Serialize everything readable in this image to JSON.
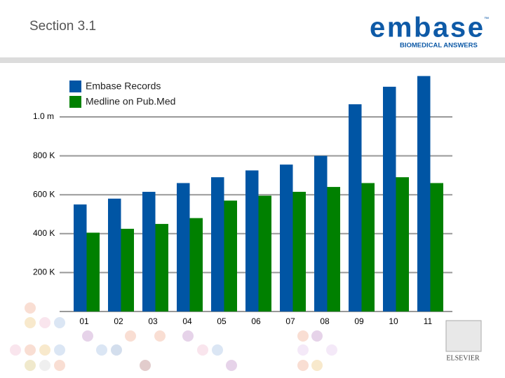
{
  "header": {
    "title": "Section 3.1",
    "logo": "embase",
    "logo_tm": "™",
    "logo_tagline": "BIOMEDICAL ANSWERS",
    "publisher": "ELSEVIER"
  },
  "chart_data": {
    "type": "bar",
    "categories": [
      "01",
      "02",
      "03",
      "04",
      "05",
      "06",
      "07",
      "08",
      "09",
      "10",
      "11"
    ],
    "series": [
      {
        "name": "Embase Records",
        "color": "#0055a4",
        "values": [
          550000,
          580000,
          615000,
          660000,
          690000,
          725000,
          755000,
          800000,
          1065000,
          1155000,
          1210000
        ]
      },
      {
        "name": "Medline on Pub.Med",
        "color": "#008000",
        "values": [
          405000,
          425000,
          450000,
          480000,
          570000,
          595000,
          615000,
          640000,
          660000,
          690000,
          660000
        ]
      }
    ],
    "ylim": [
      0,
      1250000
    ],
    "yticks": [
      {
        "value": 200000,
        "label": "200 K"
      },
      {
        "value": 400000,
        "label": "400 K"
      },
      {
        "value": 600000,
        "label": "600 K"
      },
      {
        "value": 800000,
        "label": "800 K"
      },
      {
        "value": 1000000,
        "label": "1.0 m"
      }
    ],
    "grid": true
  }
}
